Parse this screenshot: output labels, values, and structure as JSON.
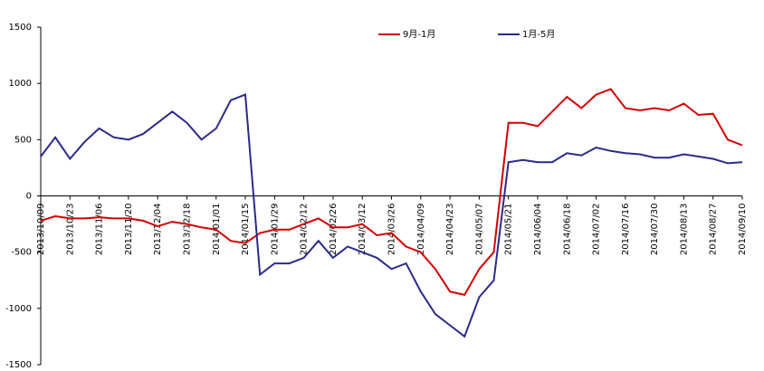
{
  "chart_data": {
    "type": "line",
    "x": [
      "2013/10/09",
      "2013/10/16",
      "2013/10/23",
      "2013/10/30",
      "2013/11/06",
      "2013/11/13",
      "2013/11/20",
      "2013/11/27",
      "2013/12/04",
      "2013/12/11",
      "2013/12/18",
      "2013/12/25",
      "2014/01/01",
      "2014/01/08",
      "2014/01/15",
      "2014/01/22",
      "2014/01/29",
      "2014/02/05",
      "2014/02/12",
      "2014/02/19",
      "2014/02/26",
      "2014/03/05",
      "2014/03/12",
      "2014/03/19",
      "2014/03/26",
      "2014/04/02",
      "2014/04/09",
      "2014/04/16",
      "2014/04/23",
      "2014/04/30",
      "2014/05/07",
      "2014/05/14",
      "2014/05/21",
      "2014/05/28",
      "2014/06/04",
      "2014/06/11",
      "2014/06/18",
      "2014/06/25",
      "2014/07/02",
      "2014/07/09",
      "2014/07/16",
      "2014/07/23",
      "2014/07/30",
      "2014/08/06",
      "2014/08/13",
      "2014/08/20",
      "2014/08/27",
      "2014/09/03",
      "2014/09/10"
    ],
    "series": [
      {
        "name": "9月-1月",
        "color": "#d40000",
        "values": [
          -220,
          -180,
          -200,
          -200,
          -190,
          -200,
          -200,
          -220,
          -270,
          -230,
          -250,
          -280,
          -300,
          -400,
          -420,
          -330,
          -300,
          -300,
          -250,
          -200,
          -280,
          -280,
          -250,
          -350,
          -330,
          -450,
          -500,
          -650,
          -850,
          -880,
          -650,
          -500,
          650,
          650,
          620,
          750,
          880,
          780,
          900,
          950,
          780,
          760,
          780,
          760,
          820,
          720,
          730,
          500,
          450
        ]
      },
      {
        "name": "1月-5月",
        "color": "#2a2a8a",
        "values": [
          350,
          520,
          330,
          480,
          600,
          520,
          500,
          550,
          650,
          750,
          650,
          500,
          600,
          850,
          900,
          -700,
          -600,
          -600,
          -550,
          -400,
          -550,
          -450,
          -500,
          -550,
          -650,
          -600,
          -850,
          -1050,
          -1150,
          -1250,
          -900,
          -750,
          300,
          320,
          300,
          300,
          380,
          360,
          430,
          400,
          380,
          370,
          340,
          340,
          370,
          350,
          330,
          290,
          300
        ]
      }
    ],
    "xlim": [
      "2013/10/09",
      "2014/09/10"
    ],
    "xticks": [
      "2013/10/09",
      "2013/10/23",
      "2013/11/06",
      "2013/11/20",
      "2013/12/04",
      "2013/12/18",
      "2014/01/01",
      "2014/01/15",
      "2014/01/29",
      "2014/02/12",
      "2014/02/26",
      "2014/03/12",
      "2014/03/26",
      "2014/04/09",
      "2014/04/23",
      "2014/05/07",
      "2014/05/21",
      "2014/06/04",
      "2014/06/18",
      "2014/07/02",
      "2014/07/16",
      "2014/07/30",
      "2014/08/13",
      "2014/08/27",
      "2014/09/10"
    ],
    "ylim": [
      -1500,
      1500
    ],
    "yticks": [
      -1500,
      -1000,
      -500,
      0,
      500,
      1000,
      1500
    ],
    "grid": false,
    "legend": "top"
  }
}
